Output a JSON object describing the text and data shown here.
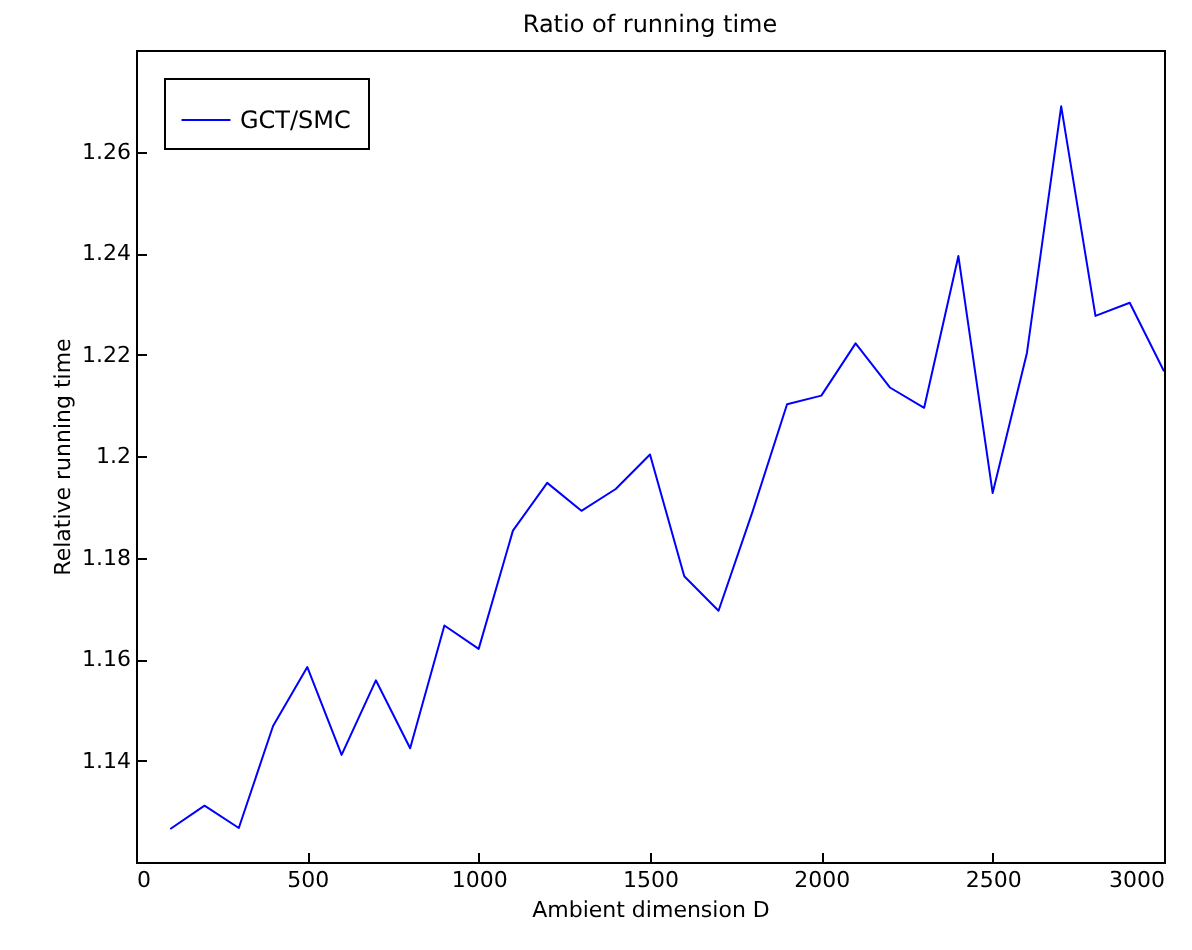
{
  "chart_data": {
    "type": "line",
    "title": "Ratio of running time",
    "xlabel": "Ambient dimension D",
    "ylabel": "Relative running time",
    "x": [
      100,
      200,
      300,
      400,
      500,
      600,
      700,
      800,
      900,
      1000,
      1100,
      1200,
      1300,
      1400,
      1500,
      1600,
      1700,
      1800,
      1900,
      2000,
      2100,
      2200,
      2300,
      2400,
      2500,
      2600,
      2700,
      2800,
      2900,
      3000
    ],
    "series": [
      {
        "name": "GCT/SMC",
        "color": "#0000ff",
        "values": [
          1.1265,
          1.1311,
          1.1267,
          1.1468,
          1.1584,
          1.1411,
          1.1558,
          1.1424,
          1.1666,
          1.162,
          1.1853,
          1.1947,
          1.1892,
          1.1935,
          1.2003,
          1.1763,
          1.1695,
          1.1892,
          1.2102,
          1.2119,
          1.2222,
          1.2135,
          1.2095,
          1.2394,
          1.1927,
          1.2203,
          1.2689,
          1.2276,
          1.2302,
          1.2167
        ]
      }
    ],
    "xlim": [
      0,
      3000
    ],
    "xticks": [
      0,
      500,
      1000,
      1500,
      2000,
      2500,
      3000
    ],
    "ylim": [
      1.12,
      1.28
    ],
    "yticks": [
      1.14,
      1.16,
      1.18,
      1.2,
      1.22,
      1.24,
      1.26
    ],
    "grid": false,
    "legend": "top left"
  }
}
